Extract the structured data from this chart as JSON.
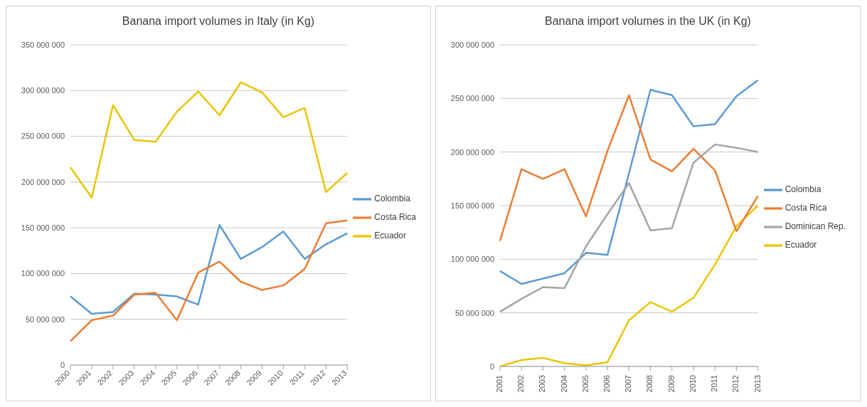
{
  "chart_data": [
    {
      "type": "line",
      "title": "Banana import volumes in Italy (in Kg)",
      "categories": [
        "2000",
        "2001",
        "2002",
        "2003",
        "2004",
        "2005",
        "2006",
        "2007",
        "2008",
        "2009",
        "2010",
        "2011",
        "2012",
        "2013"
      ],
      "series": [
        {
          "name": "Ecuador",
          "color": "#ecc400",
          "values": [
            216000000,
            183000000,
            284000000,
            246000000,
            244000000,
            277000000,
            299000000,
            273000000,
            309000000,
            298000000,
            271000000,
            281000000,
            189000000,
            210000000
          ]
        },
        {
          "name": "Colombia",
          "color": "#5b9bd5",
          "values": [
            75000000,
            56000000,
            58000000,
            78000000,
            77000000,
            75000000,
            66000000,
            153000000,
            116000000,
            129000000,
            146000000,
            116000000,
            132000000,
            144000000
          ]
        },
        {
          "name": "Costa Rica",
          "color": "#ed7d31",
          "values": [
            26000000,
            49000000,
            54000000,
            77000000,
            79000000,
            49000000,
            101000000,
            113000000,
            91000000,
            82000000,
            87000000,
            105000000,
            155000000,
            158000000
          ]
        }
      ],
      "ylim": [
        0,
        350000000
      ],
      "yticks": [
        0,
        {
          "value": 50000000,
          "label": "50 000 000"
        },
        {
          "value": 100000000,
          "label": "100 000 000"
        },
        {
          "value": 150000000,
          "label": "150 000 000"
        },
        {
          "value": 200000000,
          "label": "200 000 000"
        },
        {
          "value": 250000000,
          "label": "250 000 000"
        },
        {
          "value": 300000000,
          "label": "300 000 000"
        },
        {
          "value": 350000000,
          "label": "350 000 000"
        }
      ],
      "grid": "y",
      "legend": "right",
      "marker": "none",
      "line_style": "solid"
    },
    {
      "type": "line",
      "title": "Banana import volumes in the UK (in Kg)",
      "categories": [
        "2001",
        "2002",
        "2003",
        "2004",
        "2005",
        "2006",
        "2007",
        "2008",
        "2009",
        "2010",
        "2011",
        "2012",
        "2013"
      ],
      "series": [
        {
          "name": "Ecuador",
          "color": "#ecc400",
          "values": [
            0,
            6000000,
            8000000,
            3000000,
            1000000,
            4000000,
            43000000,
            60000000,
            51000000,
            64000000,
            95000000,
            131000000,
            150000000
          ]
        },
        {
          "name": "Colombia",
          "color": "#5b9bd5",
          "values": [
            89000000,
            77000000,
            82000000,
            87000000,
            106000000,
            104000000,
            180000000,
            258000000,
            253000000,
            224000000,
            226000000,
            252000000,
            267000000
          ]
        },
        {
          "name": "Costa Rica",
          "color": "#ed7d31",
          "values": [
            117000000,
            184000000,
            175000000,
            184000000,
            140000000,
            201000000,
            253000000,
            193000000,
            182000000,
            203000000,
            183000000,
            126000000,
            159000000
          ]
        },
        {
          "name": "Dominican Rep.",
          "color": "#a5a5a5",
          "values": [
            51000000,
            63000000,
            74000000,
            73000000,
            112000000,
            142000000,
            171000000,
            127000000,
            129000000,
            190000000,
            207000000,
            204000000,
            200000000
          ]
        }
      ],
      "ylim": [
        0,
        300000000
      ],
      "yticks": [
        0,
        {
          "value": 50000000,
          "label": "50 000 000"
        },
        {
          "value": 100000000,
          "label": "100 000 000"
        },
        {
          "value": 150000000,
          "label": "150 000 000"
        },
        {
          "value": 200000000,
          "label": "200 000 000"
        },
        {
          "value": 250000000,
          "label": "250 000 000"
        },
        {
          "value": 300000000,
          "label": "300 000 000"
        }
      ],
      "grid": "y",
      "legend": "right",
      "marker": "none",
      "line_style": "solid"
    }
  ]
}
